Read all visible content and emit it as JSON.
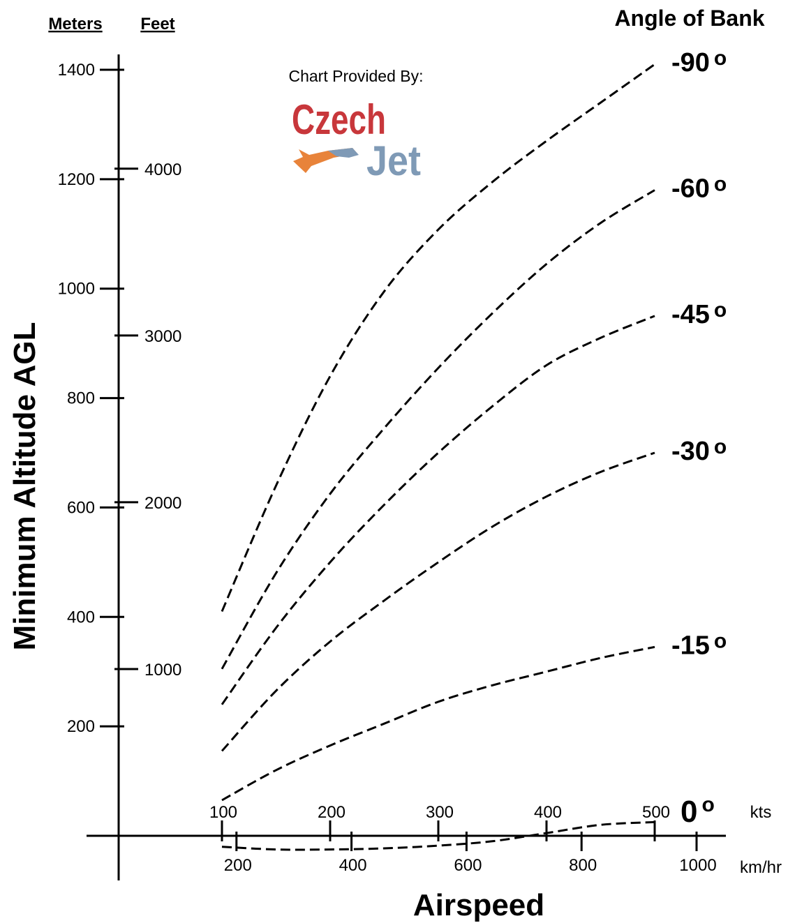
{
  "chart_data": {
    "type": "line",
    "title": "",
    "ylabel": "Minimum Altitude  AGL",
    "xlabel": "Airspeed",
    "left_axis": {
      "header": "Meters",
      "ticks": [
        200,
        400,
        600,
        800,
        1000,
        1200,
        1400
      ],
      "ylim": [
        0,
        1400
      ]
    },
    "right_axis": {
      "header": "Feet",
      "ticks": [
        1000,
        2000,
        3000,
        4000
      ]
    },
    "x_axis_top": {
      "unit": "kts",
      "ticks": [
        100,
        200,
        300,
        400,
        500
      ]
    },
    "x_axis_bottom": {
      "unit": "km/hr",
      "ticks": [
        200,
        400,
        600,
        800,
        1000
      ]
    },
    "legend_title": "Angle of Bank",
    "degree_symbol": "o",
    "x_kts": [
      100,
      150,
      200,
      250,
      300,
      350,
      400,
      450,
      500
    ],
    "series": [
      {
        "name": "-90",
        "values": [
          410,
          640,
          840,
          995,
          1108,
          1195,
          1270,
          1340,
          1410
        ]
      },
      {
        "name": "-60",
        "values": [
          305,
          480,
          625,
          745,
          855,
          955,
          1045,
          1120,
          1180
        ]
      },
      {
        "name": "-45",
        "values": [
          240,
          380,
          500,
          605,
          700,
          785,
          860,
          910,
          950
        ]
      },
      {
        "name": "-30",
        "values": [
          155,
          265,
          355,
          430,
          500,
          565,
          620,
          665,
          700
        ]
      },
      {
        "name": "-15",
        "values": [
          65,
          120,
          165,
          205,
          245,
          275,
          300,
          325,
          345
        ]
      },
      {
        "name": "0",
        "values": [
          -20,
          -25,
          -25,
          -23,
          -18,
          -10,
          5,
          20,
          25
        ]
      }
    ],
    "grid": false
  },
  "credit": {
    "text": "Chart Provided By:",
    "logo_line1": "Czech",
    "logo_line2": "Jet"
  }
}
